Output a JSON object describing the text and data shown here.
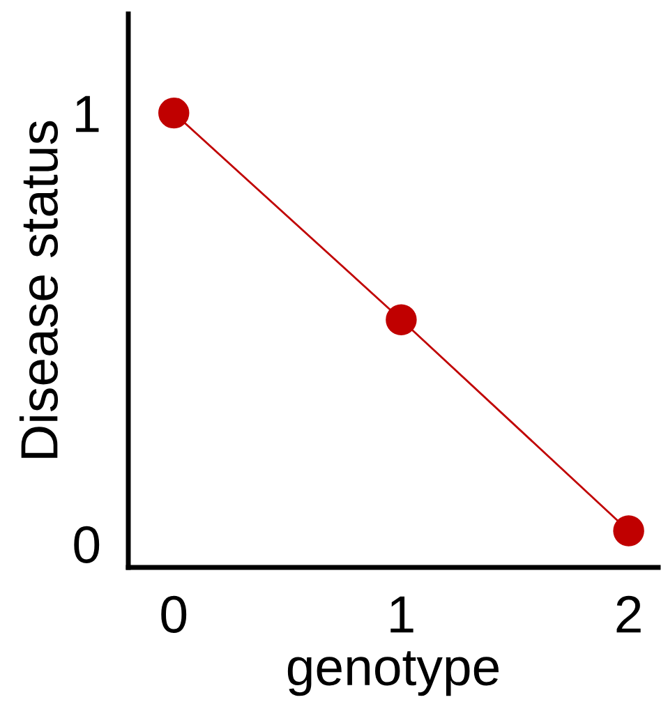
{
  "chart_data": {
    "type": "line",
    "xlabel": "genotype",
    "ylabel": "Disease status",
    "x": [
      0,
      1,
      2
    ],
    "series": [
      {
        "color": "#c00000",
        "values": [
          1,
          0.52,
          0.03
        ]
      }
    ],
    "marker": "circle",
    "line_style": "solid",
    "xlim": [
      -0.2,
      2.13
    ],
    "ylim": [
      -0.055,
      1.23
    ],
    "xticks": [
      0,
      1,
      2
    ],
    "yticks": [
      0,
      1
    ],
    "grid": false
  }
}
